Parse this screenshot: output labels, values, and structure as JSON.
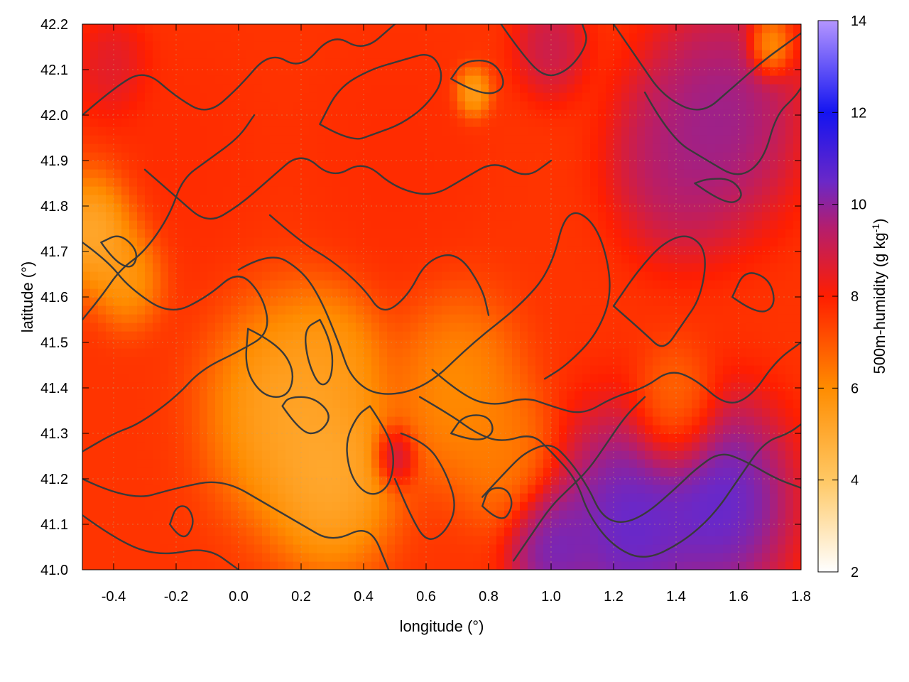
{
  "chart_data": {
    "type": "heatmap",
    "title": "",
    "xlabel": "longitude (°)",
    "ylabel": "latitude (°)",
    "xlim": [
      -0.5,
      1.8
    ],
    "ylim": [
      41.0,
      42.2
    ],
    "x_ticks": [
      -0.4,
      -0.2,
      0.0,
      0.2,
      0.4,
      0.6,
      0.8,
      1.0,
      1.2,
      1.4,
      1.6,
      1.8
    ],
    "x_tick_labels": [
      "-0.4",
      "-0.2",
      "0.0",
      "0.2",
      "0.4",
      "0.6",
      "0.8",
      "1.0",
      "1.2",
      "1.4",
      "1.6",
      "1.8"
    ],
    "y_ticks": [
      41.0,
      41.1,
      41.2,
      41.3,
      41.4,
      41.5,
      41.6,
      41.7,
      41.8,
      41.9,
      42.0,
      42.1,
      42.2
    ],
    "y_tick_labels": [
      "41.0",
      "41.1",
      "41.2",
      "41.3",
      "41.4",
      "41.5",
      "41.6",
      "41.7",
      "41.8",
      "41.9",
      "42.0",
      "42.1",
      "42.2"
    ],
    "grid": true,
    "colorbar": {
      "label": "500m-humidity (g kg",
      "label_sup": "-1",
      "label_end": ")",
      "range": [
        2,
        14
      ],
      "ticks": [
        2,
        4,
        6,
        8,
        10,
        12,
        14
      ],
      "tick_labels": [
        "2",
        "4",
        "6",
        "8",
        "10",
        "12",
        "14"
      ],
      "stops": [
        {
          "value": 2,
          "color": "#ffffff"
        },
        {
          "value": 4,
          "color": "#ffc864"
        },
        {
          "value": 6,
          "color": "#ff8c00"
        },
        {
          "value": 8,
          "color": "#ff1e00"
        },
        {
          "value": 9.5,
          "color": "#b41e6e"
        },
        {
          "value": 10.5,
          "color": "#6a28c8"
        },
        {
          "value": 12,
          "color": "#1414f0"
        },
        {
          "value": 14,
          "color": "#b496ff"
        }
      ]
    },
    "field_regions": [
      {
        "lon": -0.45,
        "lat": 41.75,
        "value": 4.0,
        "r": 0.12
      },
      {
        "lon": -0.35,
        "lat": 41.65,
        "value": 5.0,
        "r": 0.1
      },
      {
        "lon": 0.15,
        "lat": 41.35,
        "value": 4.6,
        "r": 0.22
      },
      {
        "lon": 0.3,
        "lat": 41.2,
        "value": 4.4,
        "r": 0.18
      },
      {
        "lon": 0.3,
        "lat": 41.45,
        "value": 5.2,
        "r": 0.15
      },
      {
        "lon": 0.7,
        "lat": 41.4,
        "value": 5.5,
        "r": 0.18
      },
      {
        "lon": 0.85,
        "lat": 41.25,
        "value": 6.0,
        "r": 0.14
      },
      {
        "lon": 1.4,
        "lat": 41.35,
        "value": 6.0,
        "r": 0.12
      },
      {
        "lon": 0.75,
        "lat": 42.05,
        "value": 4.5,
        "r": 0.05
      },
      {
        "lon": 1.7,
        "lat": 42.15,
        "value": 4.5,
        "r": 0.06
      },
      {
        "lon": 1.25,
        "lat": 41.1,
        "value": 11.5,
        "r": 0.22
      },
      {
        "lon": 1.55,
        "lat": 41.15,
        "value": 11.5,
        "r": 0.2
      },
      {
        "lon": 1.0,
        "lat": 41.05,
        "value": 11.0,
        "r": 0.12
      },
      {
        "lon": 1.55,
        "lat": 42.0,
        "value": 10.5,
        "r": 0.22
      },
      {
        "lon": 1.4,
        "lat": 41.9,
        "value": 10.0,
        "r": 0.18
      },
      {
        "lon": 1.0,
        "lat": 42.15,
        "value": 9.5,
        "r": 0.1
      },
      {
        "lon": 0.5,
        "lat": 41.25,
        "value": 10.0,
        "r": 0.06
      },
      {
        "lon": -0.4,
        "lat": 42.1,
        "value": 9.0,
        "r": 0.1
      },
      {
        "lon": 0.5,
        "lat": 41.9,
        "value": 7.8,
        "r": 0.25
      },
      {
        "lon": -0.2,
        "lat": 41.9,
        "value": 7.8,
        "r": 0.25
      }
    ],
    "contours": [
      [
        [
          -0.5,
          41.72
        ],
        [
          -0.42,
          41.68
        ],
        [
          -0.35,
          41.62
        ],
        [
          -0.22,
          41.56
        ],
        [
          -0.1,
          41.6
        ],
        [
          0.0,
          41.66
        ],
        [
          0.08,
          41.6
        ],
        [
          0.1,
          41.52
        ],
        [
          0.0,
          41.48
        ],
        [
          -0.12,
          41.44
        ],
        [
          -0.2,
          41.38
        ],
        [
          -0.32,
          41.32
        ],
        [
          -0.4,
          41.3
        ],
        [
          -0.5,
          41.26
        ]
      ],
      [
        [
          -0.5,
          41.2
        ],
        [
          -0.35,
          41.15
        ],
        [
          -0.2,
          41.18
        ],
        [
          -0.05,
          41.2
        ],
        [
          0.1,
          41.14
        ],
        [
          0.2,
          41.1
        ],
        [
          0.3,
          41.06
        ],
        [
          0.42,
          41.1
        ],
        [
          0.48,
          41.0
        ]
      ],
      [
        [
          -0.5,
          41.12
        ],
        [
          -0.38,
          41.06
        ],
        [
          -0.25,
          41.03
        ],
        [
          -0.1,
          41.05
        ],
        [
          0.0,
          41.0
        ]
      ],
      [
        [
          0.26,
          41.55
        ],
        [
          0.3,
          41.5
        ],
        [
          0.3,
          41.42
        ],
        [
          0.26,
          41.4
        ],
        [
          0.22,
          41.46
        ],
        [
          0.21,
          41.53
        ],
        [
          0.26,
          41.55
        ]
      ],
      [
        [
          0.03,
          41.53
        ],
        [
          0.12,
          41.5
        ],
        [
          0.18,
          41.44
        ],
        [
          0.16,
          41.38
        ],
        [
          0.08,
          41.38
        ],
        [
          0.02,
          41.44
        ],
        [
          0.03,
          41.53
        ]
      ],
      [
        [
          0.14,
          41.36
        ],
        [
          0.2,
          41.3
        ],
        [
          0.26,
          41.3
        ],
        [
          0.3,
          41.34
        ],
        [
          0.24,
          41.38
        ],
        [
          0.16,
          41.38
        ],
        [
          0.14,
          41.36
        ]
      ],
      [
        [
          0.0,
          41.66
        ],
        [
          0.1,
          41.7
        ],
        [
          0.2,
          41.66
        ],
        [
          0.26,
          41.6
        ],
        [
          0.32,
          41.5
        ],
        [
          0.36,
          41.42
        ],
        [
          0.45,
          41.38
        ],
        [
          0.6,
          41.4
        ],
        [
          0.75,
          41.5
        ],
        [
          0.9,
          41.58
        ],
        [
          1.0,
          41.66
        ],
        [
          1.05,
          41.8
        ],
        [
          1.15,
          41.76
        ],
        [
          1.2,
          41.62
        ],
        [
          1.15,
          41.52
        ],
        [
          1.05,
          41.45
        ],
        [
          0.98,
          41.42
        ]
      ],
      [
        [
          0.1,
          41.78
        ],
        [
          0.2,
          41.72
        ],
        [
          0.3,
          41.68
        ],
        [
          0.4,
          41.62
        ],
        [
          0.46,
          41.56
        ],
        [
          0.54,
          41.6
        ],
        [
          0.6,
          41.68
        ],
        [
          0.7,
          41.7
        ],
        [
          0.78,
          41.62
        ],
        [
          0.8,
          41.56
        ]
      ],
      [
        [
          -0.3,
          41.88
        ],
        [
          -0.2,
          41.82
        ],
        [
          -0.1,
          41.76
        ],
        [
          0.0,
          41.8
        ],
        [
          0.1,
          41.86
        ],
        [
          0.2,
          41.92
        ],
        [
          0.3,
          41.86
        ],
        [
          0.4,
          41.9
        ],
        [
          0.5,
          41.84
        ],
        [
          0.62,
          41.82
        ],
        [
          0.72,
          41.86
        ],
        [
          0.82,
          41.9
        ],
        [
          0.92,
          41.86
        ],
        [
          1.0,
          41.9
        ]
      ],
      [
        [
          -0.5,
          42.0
        ],
        [
          -0.4,
          42.06
        ],
        [
          -0.3,
          42.1
        ],
        [
          -0.2,
          42.04
        ],
        [
          -0.1,
          42.0
        ],
        [
          0.0,
          42.06
        ],
        [
          0.1,
          42.14
        ],
        [
          0.2,
          42.1
        ],
        [
          0.3,
          42.18
        ],
        [
          0.4,
          42.14
        ],
        [
          0.5,
          42.2
        ]
      ],
      [
        [
          0.26,
          41.98
        ],
        [
          0.36,
          41.94
        ],
        [
          0.44,
          41.96
        ],
        [
          0.52,
          41.98
        ],
        [
          0.6,
          42.02
        ],
        [
          0.66,
          42.08
        ],
        [
          0.62,
          42.14
        ],
        [
          0.52,
          42.12
        ],
        [
          0.42,
          42.1
        ],
        [
          0.32,
          42.06
        ],
        [
          0.26,
          41.98
        ]
      ],
      [
        [
          0.68,
          42.08
        ],
        [
          0.78,
          42.04
        ],
        [
          0.86,
          42.06
        ],
        [
          0.82,
          42.12
        ],
        [
          0.72,
          42.12
        ],
        [
          0.68,
          42.08
        ]
      ],
      [
        [
          0.84,
          42.2
        ],
        [
          0.9,
          42.14
        ],
        [
          0.98,
          42.08
        ],
        [
          1.06,
          42.1
        ],
        [
          1.12,
          42.16
        ],
        [
          1.1,
          42.2
        ]
      ],
      [
        [
          1.2,
          42.2
        ],
        [
          1.28,
          42.12
        ],
        [
          1.36,
          42.04
        ],
        [
          1.48,
          42.0
        ],
        [
          1.58,
          42.06
        ],
        [
          1.68,
          42.12
        ],
        [
          1.76,
          42.16
        ],
        [
          1.8,
          42.18
        ]
      ],
      [
        [
          1.3,
          42.05
        ],
        [
          1.38,
          41.95
        ],
        [
          1.5,
          41.9
        ],
        [
          1.6,
          41.86
        ],
        [
          1.68,
          41.9
        ],
        [
          1.72,
          42.0
        ],
        [
          1.78,
          42.04
        ],
        [
          1.8,
          42.06
        ]
      ],
      [
        [
          1.46,
          41.85
        ],
        [
          1.56,
          41.8
        ],
        [
          1.62,
          41.82
        ],
        [
          1.58,
          41.86
        ],
        [
          1.5,
          41.86
        ],
        [
          1.46,
          41.85
        ]
      ],
      [
        [
          0.42,
          41.36
        ],
        [
          0.48,
          41.3
        ],
        [
          0.5,
          41.24
        ],
        [
          0.48,
          41.18
        ],
        [
          0.42,
          41.16
        ],
        [
          0.36,
          41.2
        ],
        [
          0.34,
          41.28
        ],
        [
          0.38,
          41.34
        ],
        [
          0.42,
          41.36
        ]
      ],
      [
        [
          0.52,
          41.3
        ],
        [
          0.6,
          41.28
        ],
        [
          0.66,
          41.22
        ],
        [
          0.7,
          41.14
        ],
        [
          0.66,
          41.08
        ],
        [
          0.6,
          41.06
        ],
        [
          0.55,
          41.12
        ],
        [
          0.5,
          41.2
        ]
      ],
      [
        [
          0.58,
          41.38
        ],
        [
          0.68,
          41.34
        ],
        [
          0.76,
          41.3
        ],
        [
          0.84,
          41.28
        ],
        [
          0.94,
          41.3
        ],
        [
          1.0,
          41.26
        ],
        [
          1.08,
          41.2
        ],
        [
          1.12,
          41.12
        ],
        [
          1.2,
          41.05
        ],
        [
          1.3,
          41.02
        ],
        [
          1.42,
          41.06
        ],
        [
          1.52,
          41.12
        ],
        [
          1.6,
          41.2
        ],
        [
          1.68,
          41.28
        ],
        [
          1.76,
          41.3
        ],
        [
          1.8,
          41.32
        ]
      ],
      [
        [
          0.62,
          41.44
        ],
        [
          0.72,
          41.38
        ],
        [
          0.82,
          41.36
        ],
        [
          0.92,
          41.38
        ],
        [
          1.0,
          41.36
        ],
        [
          1.1,
          41.34
        ],
        [
          1.2,
          41.38
        ],
        [
          1.3,
          41.4
        ],
        [
          1.38,
          41.44
        ],
        [
          1.46,
          41.42
        ],
        [
          1.56,
          41.36
        ],
        [
          1.64,
          41.38
        ],
        [
          1.72,
          41.46
        ],
        [
          1.8,
          41.5
        ]
      ],
      [
        [
          0.78,
          41.16
        ],
        [
          0.86,
          41.22
        ],
        [
          0.92,
          41.26
        ],
        [
          1.0,
          41.28
        ],
        [
          1.06,
          41.24
        ],
        [
          1.12,
          41.18
        ],
        [
          1.16,
          41.12
        ],
        [
          1.22,
          41.1
        ],
        [
          1.3,
          41.12
        ],
        [
          1.4,
          41.18
        ],
        [
          1.46,
          41.22
        ],
        [
          1.54,
          41.26
        ],
        [
          1.62,
          41.24
        ],
        [
          1.72,
          41.2
        ],
        [
          1.8,
          41.18
        ]
      ],
      [
        [
          0.88,
          41.02
        ],
        [
          0.94,
          41.08
        ],
        [
          1.0,
          41.14
        ],
        [
          1.06,
          41.18
        ],
        [
          1.12,
          41.22
        ],
        [
          1.18,
          41.28
        ],
        [
          1.24,
          41.34
        ],
        [
          1.3,
          41.38
        ]
      ],
      [
        [
          1.2,
          41.58
        ],
        [
          1.3,
          41.52
        ],
        [
          1.36,
          41.48
        ],
        [
          1.42,
          41.54
        ],
        [
          1.48,
          41.6
        ],
        [
          1.5,
          41.7
        ],
        [
          1.44,
          41.74
        ],
        [
          1.36,
          41.72
        ],
        [
          1.28,
          41.66
        ],
        [
          1.2,
          41.58
        ]
      ],
      [
        [
          1.58,
          41.6
        ],
        [
          1.66,
          41.56
        ],
        [
          1.72,
          41.58
        ],
        [
          1.7,
          41.64
        ],
        [
          1.62,
          41.66
        ],
        [
          1.58,
          41.6
        ]
      ],
      [
        [
          -0.5,
          41.55
        ],
        [
          -0.44,
          41.6
        ],
        [
          -0.38,
          41.66
        ],
        [
          -0.3,
          41.7
        ],
        [
          -0.22,
          41.78
        ],
        [
          -0.18,
          41.86
        ],
        [
          -0.1,
          41.9
        ],
        [
          0.0,
          41.95
        ],
        [
          0.05,
          42.0
        ]
      ],
      [
        [
          -0.44,
          41.72
        ],
        [
          -0.4,
          41.68
        ],
        [
          -0.34,
          41.66
        ],
        [
          -0.32,
          41.7
        ],
        [
          -0.38,
          41.74
        ],
        [
          -0.44,
          41.72
        ]
      ],
      [
        [
          0.68,
          41.3
        ],
        [
          0.76,
          41.28
        ],
        [
          0.82,
          41.3
        ],
        [
          0.8,
          41.34
        ],
        [
          0.72,
          41.34
        ],
        [
          0.68,
          41.3
        ]
      ],
      [
        [
          0.78,
          41.14
        ],
        [
          0.84,
          41.1
        ],
        [
          0.88,
          41.14
        ],
        [
          0.86,
          41.18
        ],
        [
          0.8,
          41.18
        ],
        [
          0.78,
          41.14
        ]
      ],
      [
        [
          -0.22,
          41.1
        ],
        [
          -0.18,
          41.06
        ],
        [
          -0.14,
          41.1
        ],
        [
          -0.16,
          41.14
        ],
        [
          -0.2,
          41.14
        ],
        [
          -0.22,
          41.1
        ]
      ]
    ]
  }
}
